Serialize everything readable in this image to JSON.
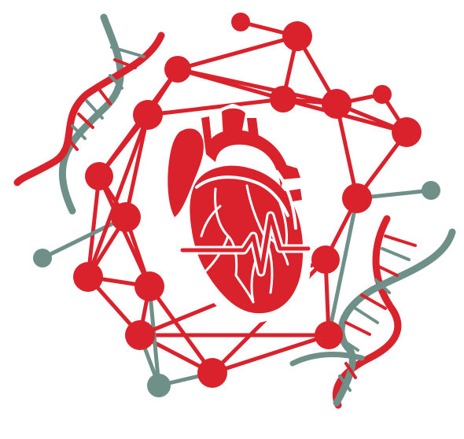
{
  "colors": {
    "red": "#d9222c",
    "gray": "#6f9088",
    "white": "#ffffff"
  },
  "icons": {
    "logo": "heart-network-dna-logo",
    "heart": "anatomical-heart-icon",
    "ecg": "ecg-pulse-icon",
    "dna": "dna-helix-icon",
    "network": "node-network-icon"
  }
}
